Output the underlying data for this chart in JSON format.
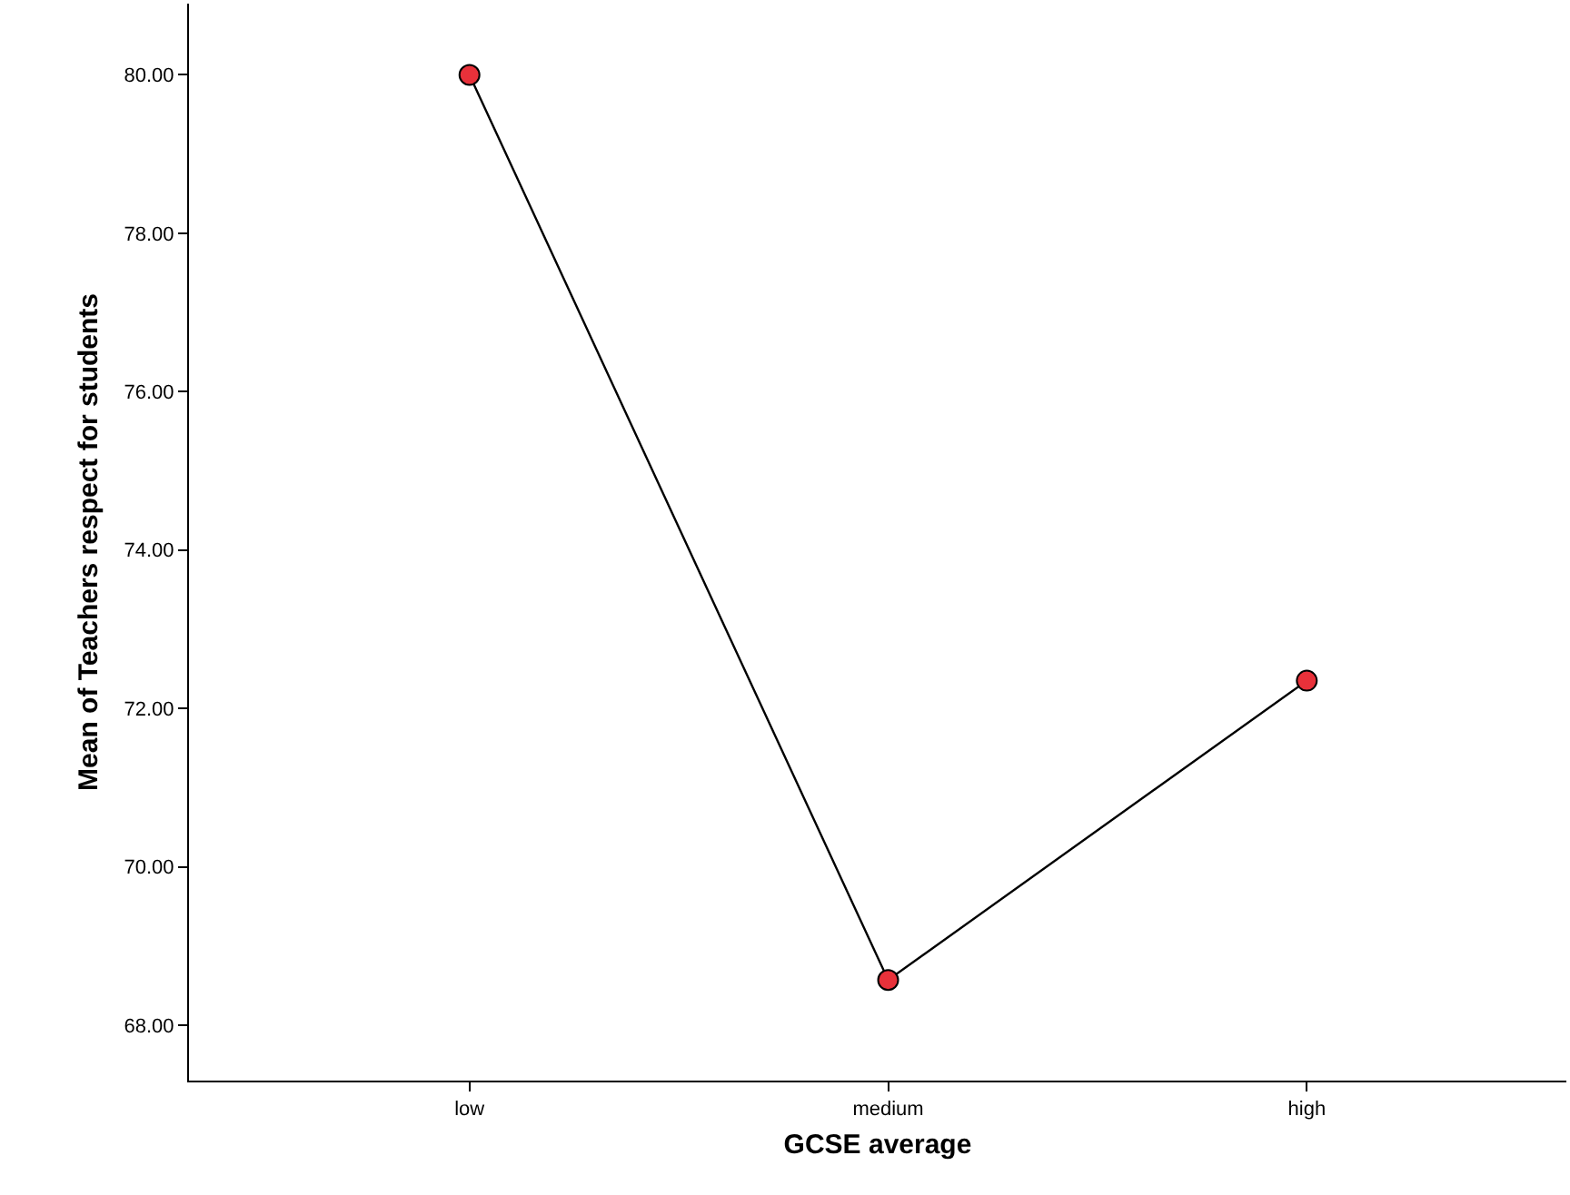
{
  "chart_data": {
    "type": "line",
    "xlabel": "GCSE average",
    "ylabel": "Mean of Teachers respect for students",
    "categories": [
      "low",
      "medium",
      "high"
    ],
    "series": [
      {
        "color": "#e8313a",
        "values": [
          80.0,
          68.57,
          72.35
        ]
      }
    ],
    "ylim": [
      67.3,
      80.9
    ],
    "yticks": [
      {
        "value": 68,
        "label": "68.00"
      },
      {
        "value": 70,
        "label": "70.00"
      },
      {
        "value": 72,
        "label": "72.00"
      },
      {
        "value": 74,
        "label": "74.00"
      },
      {
        "value": 76,
        "label": "76.00"
      },
      {
        "value": 78,
        "label": "78.00"
      },
      {
        "value": 80,
        "label": "80.00"
      }
    ],
    "grid": false,
    "legend": false,
    "marker": "circle",
    "line_style": "solid"
  }
}
